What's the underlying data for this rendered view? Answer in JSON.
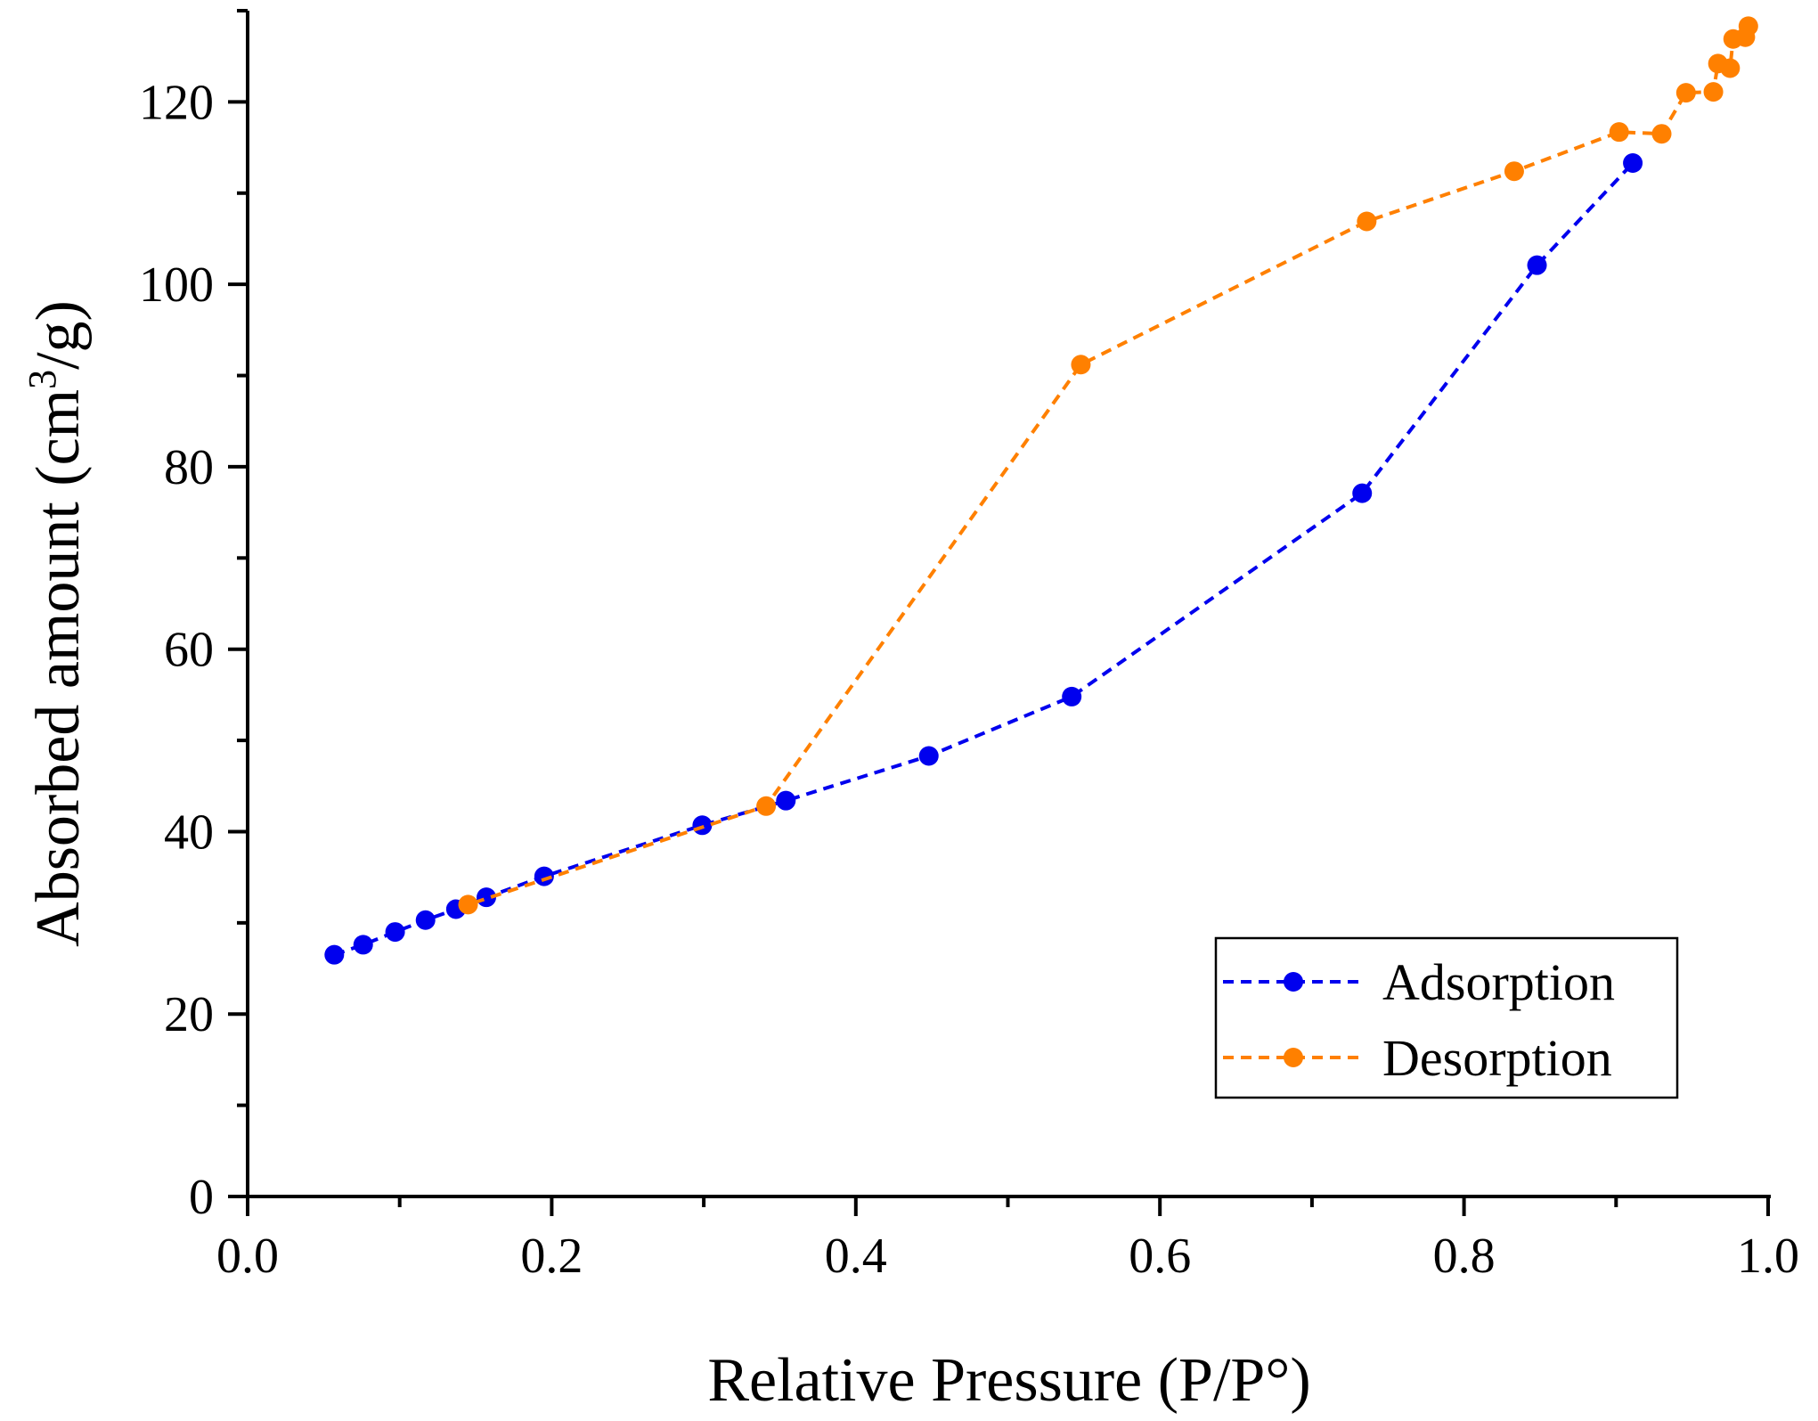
{
  "chart_data": {
    "type": "line",
    "title": "",
    "xlabel": "Relative Pressure (P/P°)",
    "ylabel_main": "Absorbed amount (cm",
    "ylabel_sup": "3",
    "ylabel_end": "/g)",
    "xlim": [
      0.0,
      1.0
    ],
    "ylim": [
      0,
      130
    ],
    "x_ticks": [
      0.0,
      0.2,
      0.4,
      0.6,
      0.8,
      1.0
    ],
    "x_tick_labels": [
      "0.0",
      "0.2",
      "0.4",
      "0.6",
      "0.8",
      "1.0"
    ],
    "y_ticks": [
      0,
      20,
      40,
      60,
      80,
      100,
      120
    ],
    "y_tick_labels": [
      "0",
      "20",
      "40",
      "60",
      "80",
      "100",
      "120"
    ],
    "legend_position": "bottom-right",
    "series": [
      {
        "name": "Adsorption",
        "color": "#0000ee",
        "x": [
          0.057,
          0.076,
          0.097,
          0.117,
          0.137,
          0.157,
          0.195,
          0.299,
          0.354,
          0.448,
          0.542,
          0.733,
          0.848,
          0.911
        ],
        "y": [
          26.5,
          27.6,
          29.0,
          30.3,
          31.5,
          32.8,
          35.1,
          40.7,
          43.4,
          48.3,
          54.8,
          77.1,
          102.1,
          113.3
        ]
      },
      {
        "name": "Desorption",
        "color": "#ff8000",
        "x": [
          0.987,
          0.985,
          0.977,
          0.975,
          0.967,
          0.964,
          0.946,
          0.93,
          0.902,
          0.833,
          0.736,
          0.548,
          0.341,
          0.145
        ],
        "y": [
          128.3,
          127.1,
          126.9,
          123.7,
          124.2,
          121.1,
          121.0,
          116.5,
          116.7,
          112.4,
          106.9,
          91.2,
          42.8,
          32.0
        ]
      }
    ]
  }
}
